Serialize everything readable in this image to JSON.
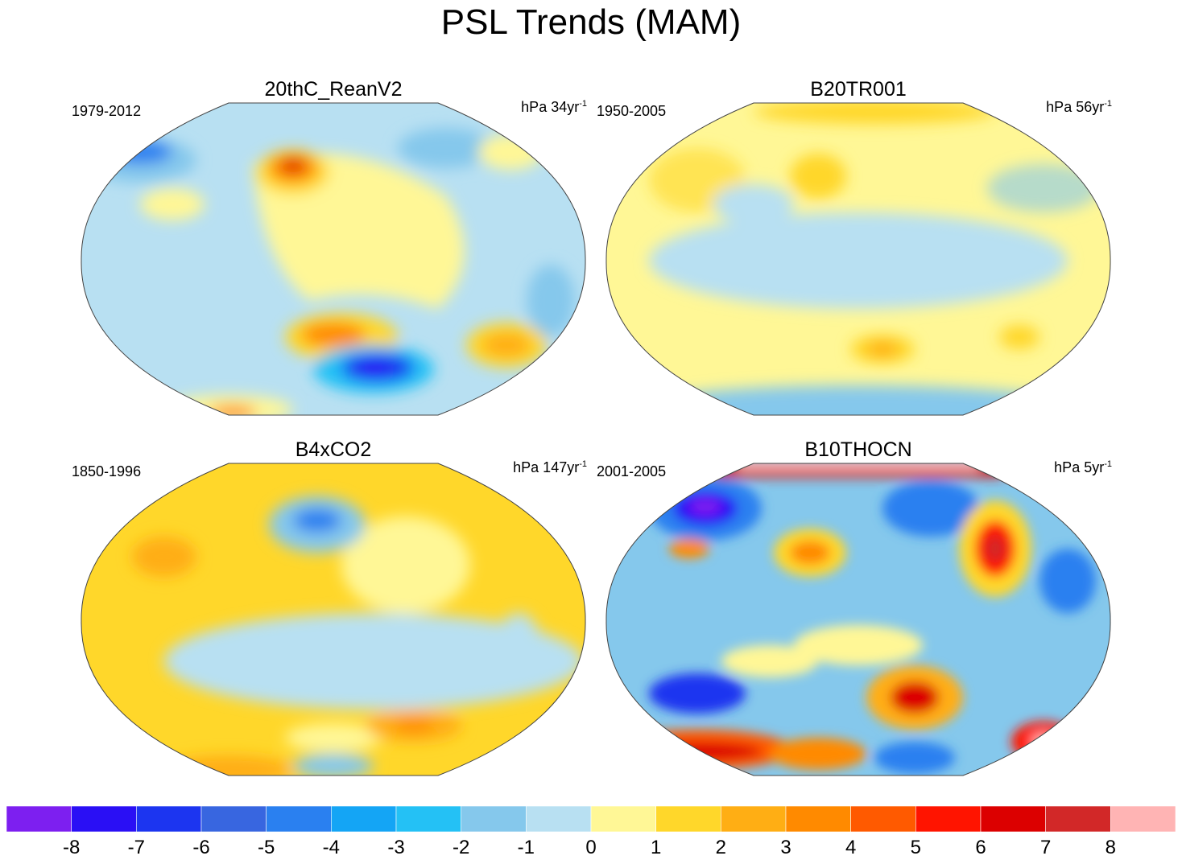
{
  "title": "PSL Trends (MAM)",
  "panels": [
    {
      "name": "20thC_ReanV2",
      "period": "1979-2012",
      "units": "hPa 34yr",
      "units_sup": "-1"
    },
    {
      "name": "B20TR001",
      "period": "1950-2005",
      "units": "hPa 56yr",
      "units_sup": "-1"
    },
    {
      "name": "B4xCO2",
      "period": "1850-1996",
      "units": "hPa 147yr",
      "units_sup": "-1"
    },
    {
      "name": "B10THOCN",
      "period": "2001-2005",
      "units": "hPa 5yr",
      "units_sup": "-1"
    }
  ],
  "colorbar": {
    "labels": [
      "-8",
      "-7",
      "-6",
      "-5",
      "-4",
      "-3",
      "-2",
      "-1",
      "0",
      "1",
      "2",
      "3",
      "4",
      "5",
      "6",
      "7",
      "8"
    ],
    "colors": [
      "#7d1ff0",
      "#2a0ff5",
      "#1c35f0",
      "#3866e0",
      "#2a80f0",
      "#14a5f5",
      "#24c1f5",
      "#85c8ec",
      "#b8e0f2",
      "#fff796",
      "#ffd72a",
      "#ffae14",
      "#ff8a00",
      "#ff5a00",
      "#ff1400",
      "#dc0000",
      "#d22828",
      "#ffb4b4"
    ]
  }
}
